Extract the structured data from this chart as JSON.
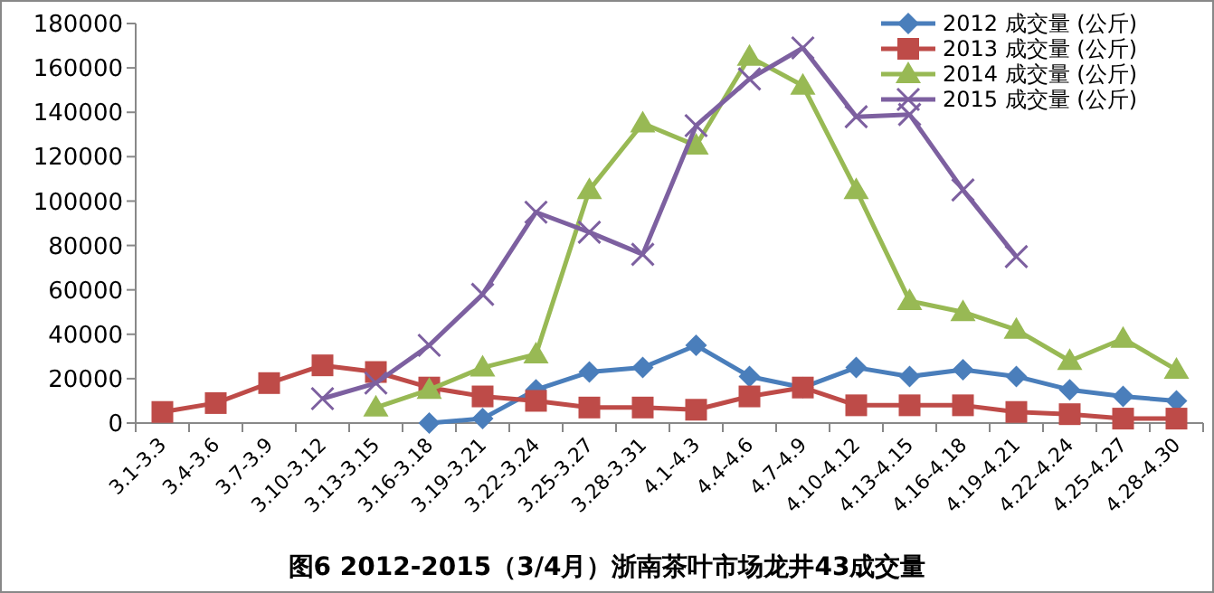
{
  "chart_data": {
    "type": "line",
    "title": "图6 2012-2015（3/4月）浙南茶叶市场龙井43成交量",
    "categories": [
      "3.1-3.3",
      "3.4-3.6",
      "3.7-3.9",
      "3.10-3.12",
      "3.13-3.15",
      "3.16-3.18",
      "3.19-3.21",
      "3.22-3.24",
      "3.25-3.27",
      "3.28-3.31",
      "4.1-4.3",
      "4.4-4.6",
      "4.7-4.9",
      "4.10-4.12",
      "4.13-4.15",
      "4.16-4.18",
      "4.19-4.21",
      "4.22-4.24",
      "4.25-4.27",
      "4.28-4.30"
    ],
    "series": [
      {
        "name": "2012 成交量 (公斤)",
        "color": "#4a7ebb",
        "marker": "diamond",
        "values": [
          null,
          null,
          null,
          null,
          null,
          0,
          2000,
          15000,
          23000,
          25000,
          35000,
          21000,
          16000,
          25000,
          21000,
          24000,
          21000,
          15000,
          12000,
          10000
        ]
      },
      {
        "name": "2013 成交量 (公斤)",
        "color": "#be4b48",
        "marker": "square",
        "values": [
          5000,
          9000,
          18000,
          26000,
          23000,
          16000,
          12000,
          10000,
          7000,
          7000,
          6000,
          12000,
          16000,
          8000,
          8000,
          8000,
          5000,
          4000,
          2000,
          2000
        ]
      },
      {
        "name": "2014 成交量 (公斤)",
        "color": "#98b954",
        "marker": "triangle",
        "values": [
          null,
          null,
          null,
          null,
          7000,
          15000,
          25000,
          31000,
          105000,
          135000,
          125000,
          165000,
          152000,
          105000,
          55000,
          50000,
          42000,
          28000,
          38000,
          24000
        ]
      },
      {
        "name": "2015 成交量 (公斤)",
        "color": "#7d60a0",
        "marker": "cross",
        "values": [
          null,
          null,
          null,
          11000,
          18000,
          35000,
          58000,
          95000,
          86000,
          76000,
          134000,
          155000,
          169000,
          138000,
          139000,
          105000,
          75000,
          null,
          null,
          null
        ]
      }
    ],
    "ylim": [
      0,
      180000
    ],
    "yticks": [
      0,
      20000,
      40000,
      60000,
      80000,
      100000,
      120000,
      140000,
      160000,
      180000
    ],
    "legend": "top right",
    "grid": false
  }
}
